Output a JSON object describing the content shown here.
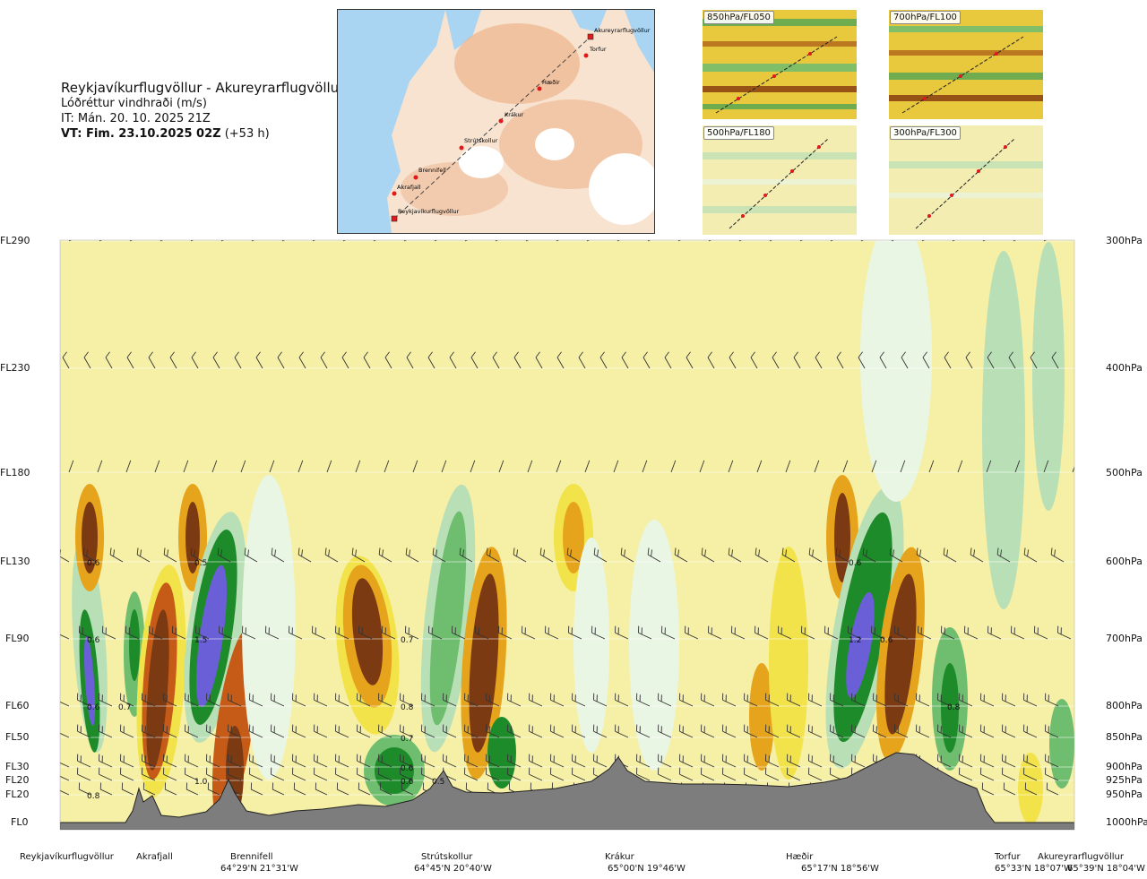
{
  "title": {
    "route": "Reykjavíkurflugvöllur - Akureyrarflugvöllur",
    "variable": "Lóðréttur vindhraði (m/s)",
    "it": "IT: Mán. 20. 10. 2025 21Z",
    "vt_bold": "VT: Fim. 23.10.2025 02Z",
    "vt_suffix": " (+53 h)"
  },
  "overview_map": {
    "places": [
      {
        "label": "Akureyrarflugvöllur",
        "kind": "airport"
      },
      {
        "label": "Torfur",
        "kind": "point"
      },
      {
        "label": "Hæðir",
        "kind": "point"
      },
      {
        "label": "Krákur",
        "kind": "point"
      },
      {
        "label": "Strútskollur",
        "kind": "point"
      },
      {
        "label": "Brennifell",
        "kind": "point"
      },
      {
        "label": "Akrafjall",
        "kind": "point"
      },
      {
        "label": "Reykjavíkurflugvöllur",
        "kind": "airport"
      }
    ],
    "colors": {
      "sea": "#a9d4f2",
      "land_low": "#f7e3d0",
      "land_high": "#e89a6a",
      "glacier": "#ffffff",
      "route": "#444444",
      "marker": "#e0191b"
    }
  },
  "level_maps": [
    {
      "label": "850hPa/FL050"
    },
    {
      "label": "700hPa/FL100"
    },
    {
      "label": "500hPa/FL180"
    },
    {
      "label": "300hPa/FL300"
    }
  ],
  "left_axis": [
    "FL290",
    "FL230",
    "FL180",
    "FL130",
    "FL90",
    "FL60",
    "FL50",
    "FL30",
    "FL20",
    "FL20",
    "FL0"
  ],
  "right_axis": [
    "300hPa",
    "400hPa",
    "500hPa",
    "600hPa",
    "700hPa",
    "800hPa",
    "850hPa",
    "900hPa",
    "925hPa",
    "950hPa",
    "1000hPa"
  ],
  "waypoints": [
    {
      "name": "Reykjavíkurflugvöllur",
      "coord": ""
    },
    {
      "name": "Akrafjall",
      "coord": ""
    },
    {
      "name": "Brennifell",
      "coord": "64°29'N 21°31'W"
    },
    {
      "name": "Strútskollur",
      "coord": "64°45'N 20°40'W"
    },
    {
      "name": "Krákur",
      "coord": "65°00'N 19°46'W"
    },
    {
      "name": "Hæðir",
      "coord": "65°17'N 18°56'W"
    },
    {
      "name": "Torfur",
      "coord": "65°33'N 18°07'W"
    },
    {
      "name": "Akureyrarflugvöllur",
      "coord": "65°39'N 18°04'W"
    }
  ],
  "chart_data": {
    "type": "heatmap",
    "title": "Reykjavíkurflugvöllur - Akureyrarflugvöllur",
    "variable": "Lóðréttur vindhraði (m/s)",
    "x_axis": "route distance (Reykjavíkurflugvöllur → Akureyrarflugvöllur)",
    "y_levels_hpa": [
      300,
      400,
      500,
      600,
      700,
      800,
      850,
      900,
      925,
      950,
      1000
    ],
    "y_levels_fl": [
      "FL290",
      "FL230",
      "FL180",
      "FL130",
      "FL90",
      "FL60",
      "FL50",
      "FL30",
      "FL20",
      "FL20",
      "FL0"
    ],
    "value_labels": [
      {
        "value": "0.6",
        "near": "Akrafjall",
        "level_hpa": 600
      },
      {
        "value": "0.5",
        "near": "Brennifell",
        "level_hpa": 600
      },
      {
        "value": "0.6",
        "near": "Akrafjall",
        "level_hpa": 700
      },
      {
        "value": "1.5",
        "near": "Brennifell",
        "level_hpa": 700
      },
      {
        "value": "0.7",
        "near": "Strútskollur",
        "level_hpa": 700
      },
      {
        "value": "1.2",
        "near": "Hæðir",
        "level_hpa": 700
      },
      {
        "value": "0.6",
        "near": "Hæðir",
        "level_hpa": 700
      },
      {
        "value": "0.6",
        "near": "Akrafjall",
        "level_hpa": 800
      },
      {
        "value": "0.7",
        "near": "Akrafjall",
        "level_hpa": 800
      },
      {
        "value": "0.8",
        "near": "Strútskollur",
        "level_hpa": 800
      },
      {
        "value": "0.8",
        "near": "Torfur",
        "level_hpa": 800
      },
      {
        "value": "0.7",
        "near": "Strútskollur",
        "level_hpa": 850
      },
      {
        "value": "0.6",
        "near": "Strútskollur",
        "level_hpa": 900
      },
      {
        "value": "0.6",
        "near": "Strútskollur",
        "level_hpa": 925
      },
      {
        "value": "0.5",
        "near": "Strútskollur",
        "level_hpa": 925
      },
      {
        "value": "1.0",
        "near": "Brennifell",
        "level_hpa": 925
      },
      {
        "value": "0.8",
        "near": "Akrafjall",
        "level_hpa": 950
      },
      {
        "value": "0.6",
        "near": "Hæðir",
        "level_hpa": 600
      }
    ],
    "colors": {
      "sinking_strong": "#7c3a12",
      "sinking_mod": "#c65a17",
      "sinking_weak": "#e6a41c",
      "sinking_faint": "#f2e34a",
      "neutral": "#f6efa6",
      "rising_faint": "#e9f6e3",
      "rising_weak": "#b9dfb7",
      "rising_mod": "#6fbe70",
      "rising_strong": "#1e8b2a",
      "rising_max": "#6a5fd6",
      "terrain": "#7d7d7d"
    }
  }
}
